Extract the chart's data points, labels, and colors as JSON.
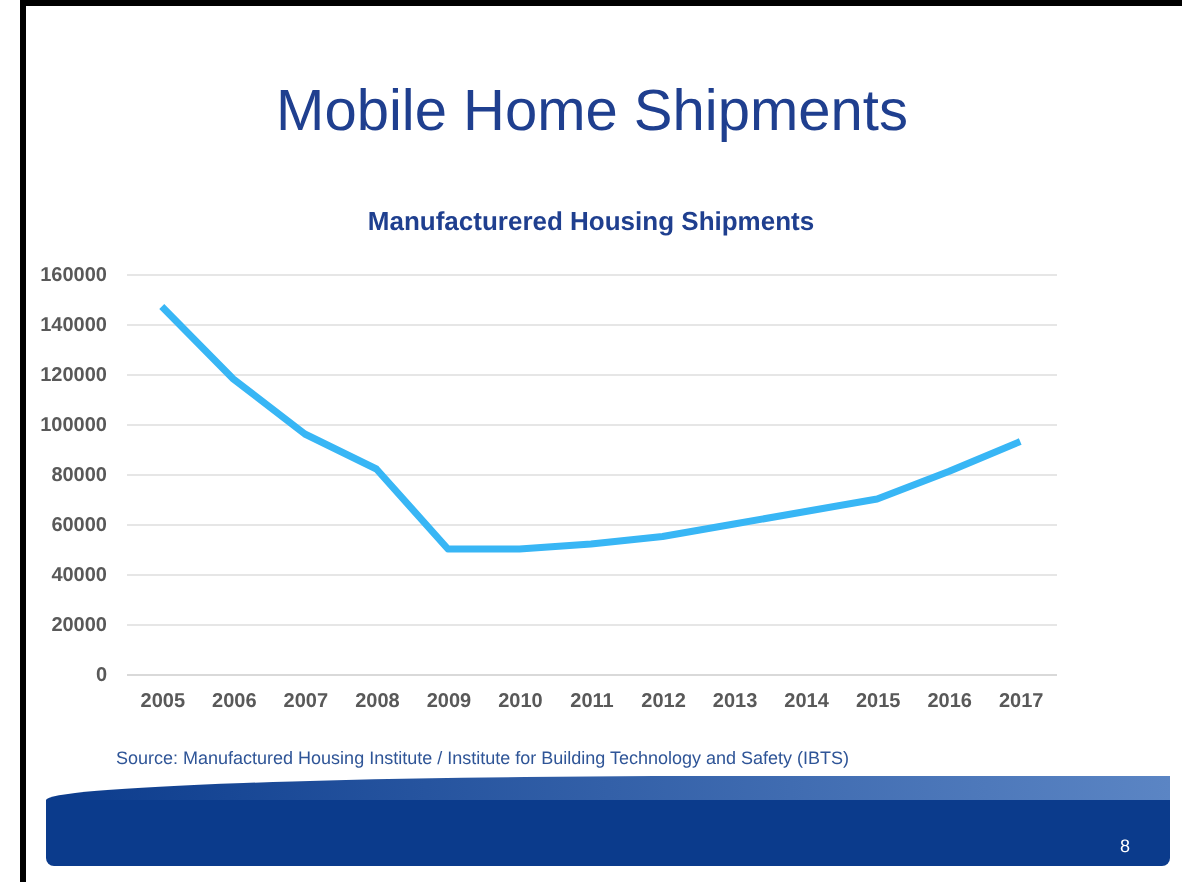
{
  "chart_data": {
    "type": "line",
    "title": "Mobile Home Shipments",
    "subtitle": "Manufacturered Housing Shipments",
    "categories": [
      "2005",
      "2006",
      "2007",
      "2008",
      "2009",
      "2010",
      "2011",
      "2012",
      "2013",
      "2014",
      "2015",
      "2016",
      "2017"
    ],
    "series": [
      {
        "color": "#38b6f5",
        "values": [
          147000,
          118000,
          96000,
          82000,
          50000,
          50000,
          52000,
          55000,
          60000,
          65000,
          70000,
          81000,
          93000
        ]
      }
    ],
    "ylim": [
      0,
      160000
    ],
    "yticks": [
      0,
      20000,
      40000,
      60000,
      80000,
      100000,
      120000,
      140000,
      160000
    ],
    "grid": "y",
    "legend": false,
    "marker": "none",
    "line_style": "solid",
    "annotations": [
      "Source: Manufactured Housing Institute / Institute for Building Technology and Safety (IBTS)",
      "8"
    ]
  }
}
